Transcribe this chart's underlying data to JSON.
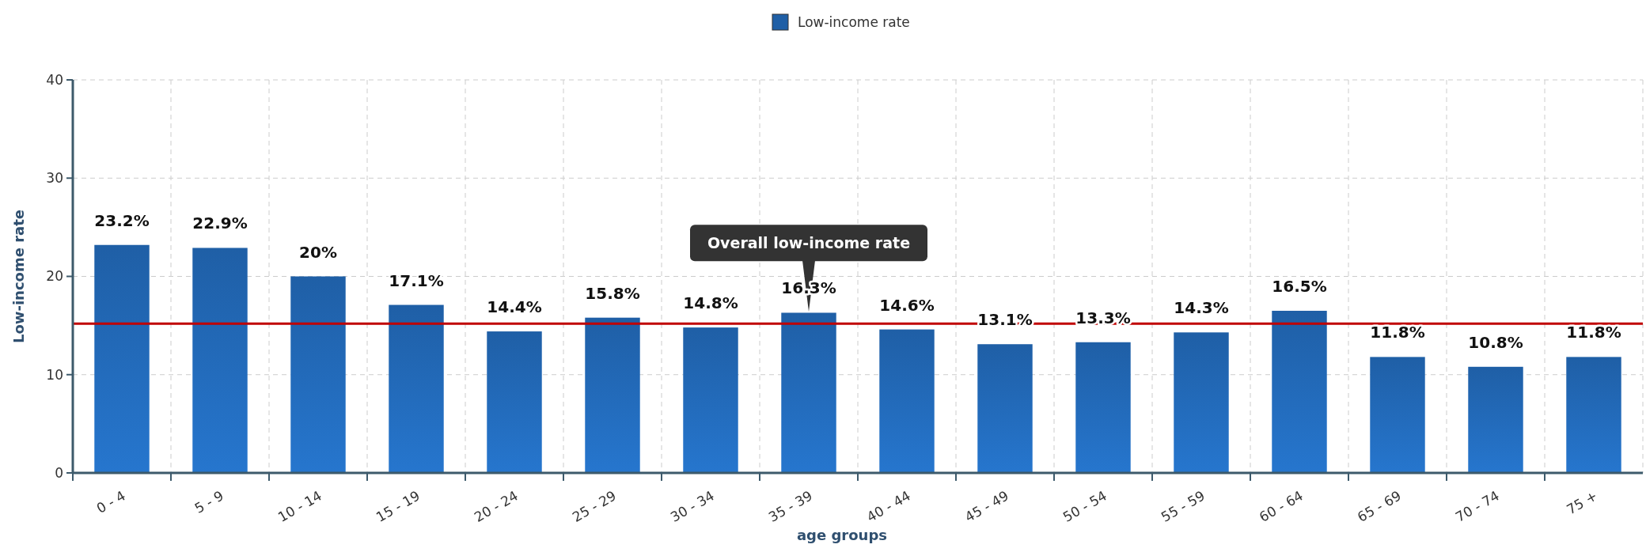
{
  "chart_data": {
    "type": "bar",
    "xlabel": "age groups",
    "ylabel": "Low-income rate",
    "categories": [
      "0 - 4",
      "5 - 9",
      "10 - 14",
      "15 - 19",
      "20 - 24",
      "25 - 29",
      "30 - 34",
      "35 - 39",
      "40 - 44",
      "45 - 49",
      "50 - 54",
      "55 - 59",
      "60 - 64",
      "65 - 69",
      "70 - 74",
      "75 +"
    ],
    "series": [
      {
        "name": "Low-income rate",
        "color": "#1f5fa6",
        "values": [
          23.2,
          22.9,
          20,
          17.1,
          14.4,
          15.8,
          14.8,
          16.3,
          14.6,
          13.1,
          13.3,
          14.3,
          16.5,
          11.8,
          10.8,
          11.8
        ],
        "value_labels": [
          "23.2%",
          "22.9%",
          "20%",
          "17.1%",
          "14.4%",
          "15.8%",
          "14.8%",
          "16.3%",
          "14.6%",
          "13.1%",
          "13.3%",
          "14.3%",
          "16.5%",
          "11.8%",
          "10.8%",
          "11.8%"
        ]
      }
    ],
    "ylim": [
      0,
      40
    ],
    "yticks": [
      0,
      10,
      20,
      30,
      40
    ],
    "grid": true,
    "legend": "top",
    "ref_lines": [
      {
        "axis": "y",
        "value": 15.2,
        "color": "#c00000"
      }
    ],
    "annotations": [
      "Overall low-income rate"
    ]
  }
}
